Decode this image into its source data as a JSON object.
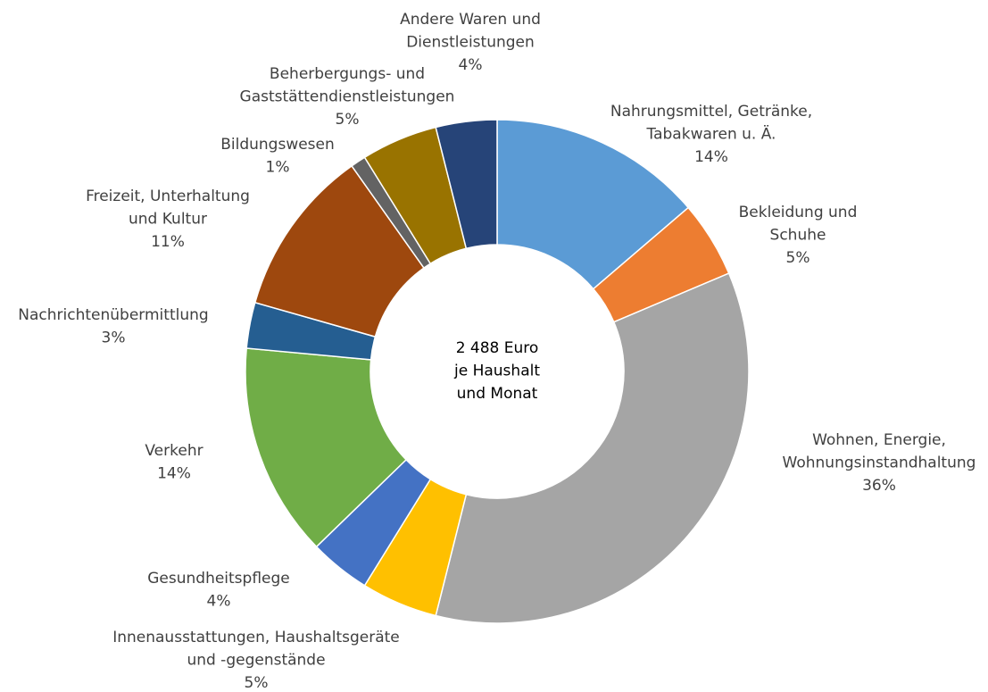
{
  "chart_data": {
    "type": "donut",
    "annotation": "2 488 Euro\nje Haushalt\nund Monat",
    "categories": [
      "Nahrungsmittel, Getränke,\nTabakwaren u. Ä.",
      "Bekleidung und\nSchuhe",
      "Wohnen, Energie,\nWohnungsinstandhaltung",
      "Innenausstattungen, Haushaltsgeräte\nund -gegenstände",
      "Gesundheitspflege",
      "Verkehr",
      "Nachrichtenübermittlung",
      "Freizeit, Unterhaltung\nund Kultur",
      "Bildungswesen",
      "Beherbergungs- und\nGaststättendienstleistungen",
      "Andere Waren und\nDienstleistungen"
    ],
    "values": [
      14,
      5,
      36,
      5,
      4,
      14,
      3,
      11,
      1,
      5,
      4
    ],
    "value_labels": [
      "14%",
      "5%",
      "36%",
      "5%",
      "4%",
      "14%",
      "3%",
      "11%",
      "1%",
      "5%",
      "4%"
    ],
    "colors": [
      "#5b9bd5",
      "#ed7d31",
      "#a5a5a5",
      "#ffc000",
      "#4472c4",
      "#70ad47",
      "#255e91",
      "#9e480e",
      "#636363",
      "#997300",
      "#264478"
    ]
  }
}
